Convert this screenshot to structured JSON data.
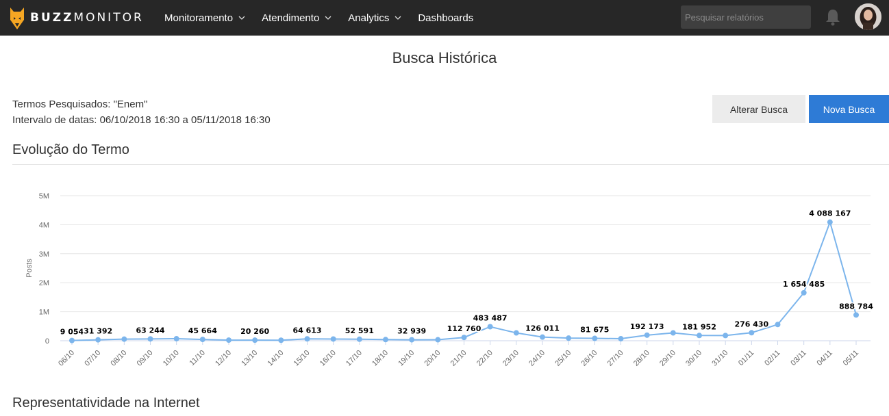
{
  "app": {
    "brand_bold": "BUZZ",
    "brand_light": "MONITOR"
  },
  "nav": {
    "items": [
      {
        "label": "Monitoramento",
        "has_dropdown": true
      },
      {
        "label": "Atendimento",
        "has_dropdown": true
      },
      {
        "label": "Analytics",
        "has_dropdown": true
      },
      {
        "label": "Dashboards",
        "has_dropdown": false
      }
    ]
  },
  "search": {
    "placeholder": "Pesquisar relatórios"
  },
  "icons": {
    "logo": "fox-logo-icon",
    "bell": "bell-icon",
    "avatar": "user-avatar"
  },
  "colors": {
    "topbar": "#272727",
    "accent": "#2e7bd6",
    "line": "#7cb5ec",
    "logo": "#f5a623"
  },
  "page": {
    "title": "Busca Histórica",
    "terms_line": "Termos Pesquisados: \"Enem\"",
    "date_line": "Intervalo de datas: 06/10/2018 16:30 a 05/11/2018 16:30"
  },
  "buttons": {
    "alter": "Alterar Busca",
    "new": "Nova Busca"
  },
  "sections": {
    "evolution": "Evolução do Termo",
    "representativity": "Representatividade na Internet"
  },
  "chart_data": {
    "type": "line",
    "title": "",
    "xlabel": "",
    "ylabel": "Posts",
    "ylim": [
      0,
      5000000
    ],
    "yticks": [
      "0",
      "1M",
      "2M",
      "3M",
      "4M",
      "5M"
    ],
    "categories": [
      "06/10",
      "07/10",
      "08/10",
      "09/10",
      "10/10",
      "11/10",
      "12/10",
      "13/10",
      "14/10",
      "15/10",
      "16/10",
      "17/10",
      "18/10",
      "19/10",
      "20/10",
      "21/10",
      "22/10",
      "23/10",
      "24/10",
      "25/10",
      "26/10",
      "27/10",
      "28/10",
      "29/10",
      "30/10",
      "31/10",
      "01/11",
      "02/11",
      "03/11",
      "04/11",
      "05/11"
    ],
    "values": [
      9054,
      31392,
      55000,
      63244,
      70000,
      45664,
      22000,
      20260,
      18000,
      64613,
      60000,
      52591,
      40000,
      32939,
      35000,
      112760,
      483487,
      270000,
      126011,
      90000,
      81675,
      70000,
      192173,
      270000,
      181952,
      180000,
      276430,
      560000,
      1654485,
      4088167,
      888784
    ],
    "data_labels": [
      "9 054",
      "31 392",
      "",
      "63 244",
      "",
      "45 664",
      "",
      "20 260",
      "",
      "64 613",
      "",
      "52 591",
      "",
      "32 939",
      "",
      "112 760",
      "483 487",
      "",
      "126 011",
      "",
      "81 675",
      "",
      "192 173",
      "",
      "181 952",
      "",
      "276 430",
      "",
      "1 654 485",
      "4 088 167",
      "888 784"
    ],
    "grid": true,
    "legend": "none"
  }
}
